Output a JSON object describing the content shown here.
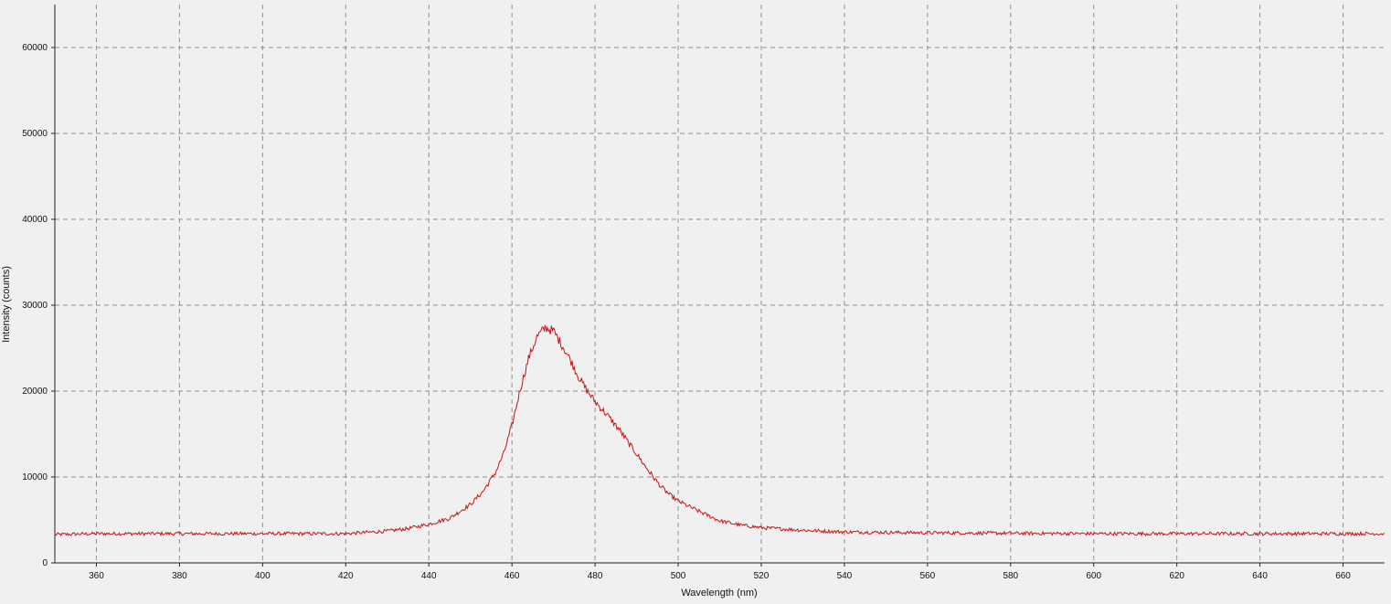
{
  "chart_data": {
    "type": "line",
    "xlabel": "Wavelength (nm)",
    "ylabel": "Intensity (counts)",
    "xlim": [
      350,
      670
    ],
    "ylim": [
      0,
      65000
    ],
    "x_ticks": [
      360,
      380,
      400,
      420,
      440,
      460,
      480,
      500,
      520,
      540,
      560,
      580,
      600,
      620,
      640,
      660
    ],
    "y_ticks": [
      0,
      10000,
      20000,
      30000,
      40000,
      50000,
      60000
    ],
    "grid": true,
    "legend": "none",
    "series": [
      {
        "color": "#cc1111",
        "x": [
          350,
          360,
          380,
          400,
          420,
          430,
          435,
          440,
          445,
          450,
          453,
          456,
          458,
          460,
          462,
          464,
          466,
          468,
          470,
          472,
          474,
          476,
          478,
          480,
          482,
          484,
          486,
          488,
          490,
          492,
          494,
          496,
          498,
          500,
          505,
          510,
          515,
          520,
          530,
          540,
          560,
          580,
          600,
          620,
          640,
          660,
          670
        ],
        "y": [
          3300,
          3400,
          3400,
          3400,
          3400,
          3700,
          4000,
          4500,
          5200,
          6800,
          8300,
          10500,
          12700,
          16000,
          20200,
          23800,
          26300,
          27400,
          27000,
          25400,
          23700,
          21700,
          20100,
          18800,
          17700,
          16600,
          15400,
          14000,
          12700,
          11300,
          10000,
          8800,
          7900,
          7200,
          6000,
          4900,
          4400,
          4100,
          3800,
          3600,
          3500,
          3450,
          3400,
          3400,
          3400,
          3400,
          3400
        ]
      }
    ]
  }
}
